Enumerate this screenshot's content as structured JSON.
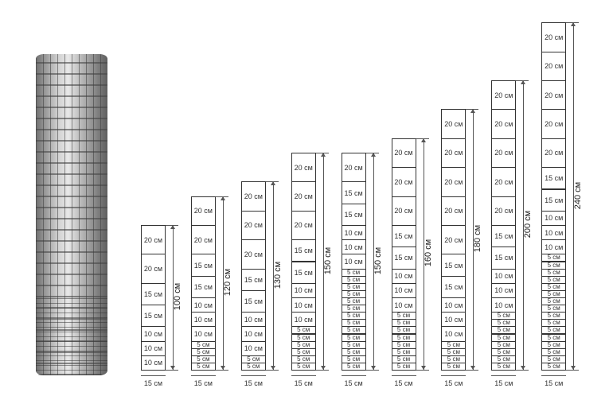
{
  "photo": {
    "subject": "wire fence roll"
  },
  "columns": [
    {
      "total": "100 см",
      "width": "15 см",
      "cells": [
        "20 см",
        "20 см",
        "15 см",
        "15 см",
        "10 см",
        "10 см",
        "10 см"
      ]
    },
    {
      "total": "120 см",
      "width": "15 см",
      "cells": [
        "20 см",
        "20 см",
        "15 см",
        "15 см",
        "10 см",
        "10 см",
        "10 см",
        "5 см",
        "5 см",
        "5 см",
        "5 см"
      ]
    },
    {
      "total": "130 см",
      "width": "15 см",
      "cells": [
        "20 см",
        "20 см",
        "20 см",
        "15 см",
        "15 см",
        "10 см",
        "10 см",
        "10 см",
        "5 см",
        "5 см"
      ]
    },
    {
      "total": "150 см",
      "width": "15 см",
      "cells": [
        "20 см",
        "20 см",
        "20 см",
        "15 см",
        "15 см",
        "10 см",
        "10 см",
        "10 см",
        "5 см",
        "5 см",
        "5 см",
        "5 см",
        "5 см",
        "5 см"
      ]
    },
    {
      "total": "150 см",
      "width": "15 см",
      "cells": [
        "20 см",
        "15 см",
        "15 см",
        "10 см",
        "10 см",
        "10 см",
        "5 см",
        "5 см",
        "5 см",
        "5 см",
        "5 см",
        "5 см",
        "5 см",
        "5 см",
        "5 см",
        "5 см",
        "5 см",
        "5 см",
        "5 см",
        "5 см"
      ]
    },
    {
      "total": "160 см",
      "width": "15 см",
      "cells": [
        "20 см",
        "20 см",
        "20 см",
        "15 см",
        "15 см",
        "10 см",
        "10 см",
        "10 см",
        "5 см",
        "5 см",
        "5 см",
        "5 см",
        "5 см",
        "5 см",
        "5 см",
        "5 см"
      ]
    },
    {
      "total": "180 см",
      "width": "15 см",
      "cells": [
        "20 см",
        "20 см",
        "20 см",
        "20 см",
        "20 см",
        "15 см",
        "15 см",
        "10 см",
        "10 см",
        "10 см",
        "5 см",
        "5 см",
        "5 см",
        "5 см"
      ]
    },
    {
      "total": "200 см",
      "width": "15 см",
      "cells": [
        "20 см",
        "20 см",
        "20 см",
        "20 см",
        "20 см",
        "15 см",
        "15 см",
        "10 см",
        "10 см",
        "10 см",
        "5 см",
        "5 см",
        "5 см",
        "5 см",
        "5 см",
        "5 см",
        "5 см",
        "5 см"
      ]
    },
    {
      "total": "240 см",
      "width": "15 см",
      "cells": [
        "20 см",
        "20 см",
        "20 см",
        "20 см",
        "20 см",
        "15 см",
        "15 см",
        "10 см",
        "10 см",
        "10 см",
        "5 см",
        "5 см",
        "5 см",
        "5 см",
        "5 см",
        "5 см",
        "5 см",
        "5 см",
        "5 см",
        "5 см",
        "5 см",
        "5 см",
        "5 см",
        "5 см",
        "5 см",
        "5 см"
      ]
    }
  ]
}
